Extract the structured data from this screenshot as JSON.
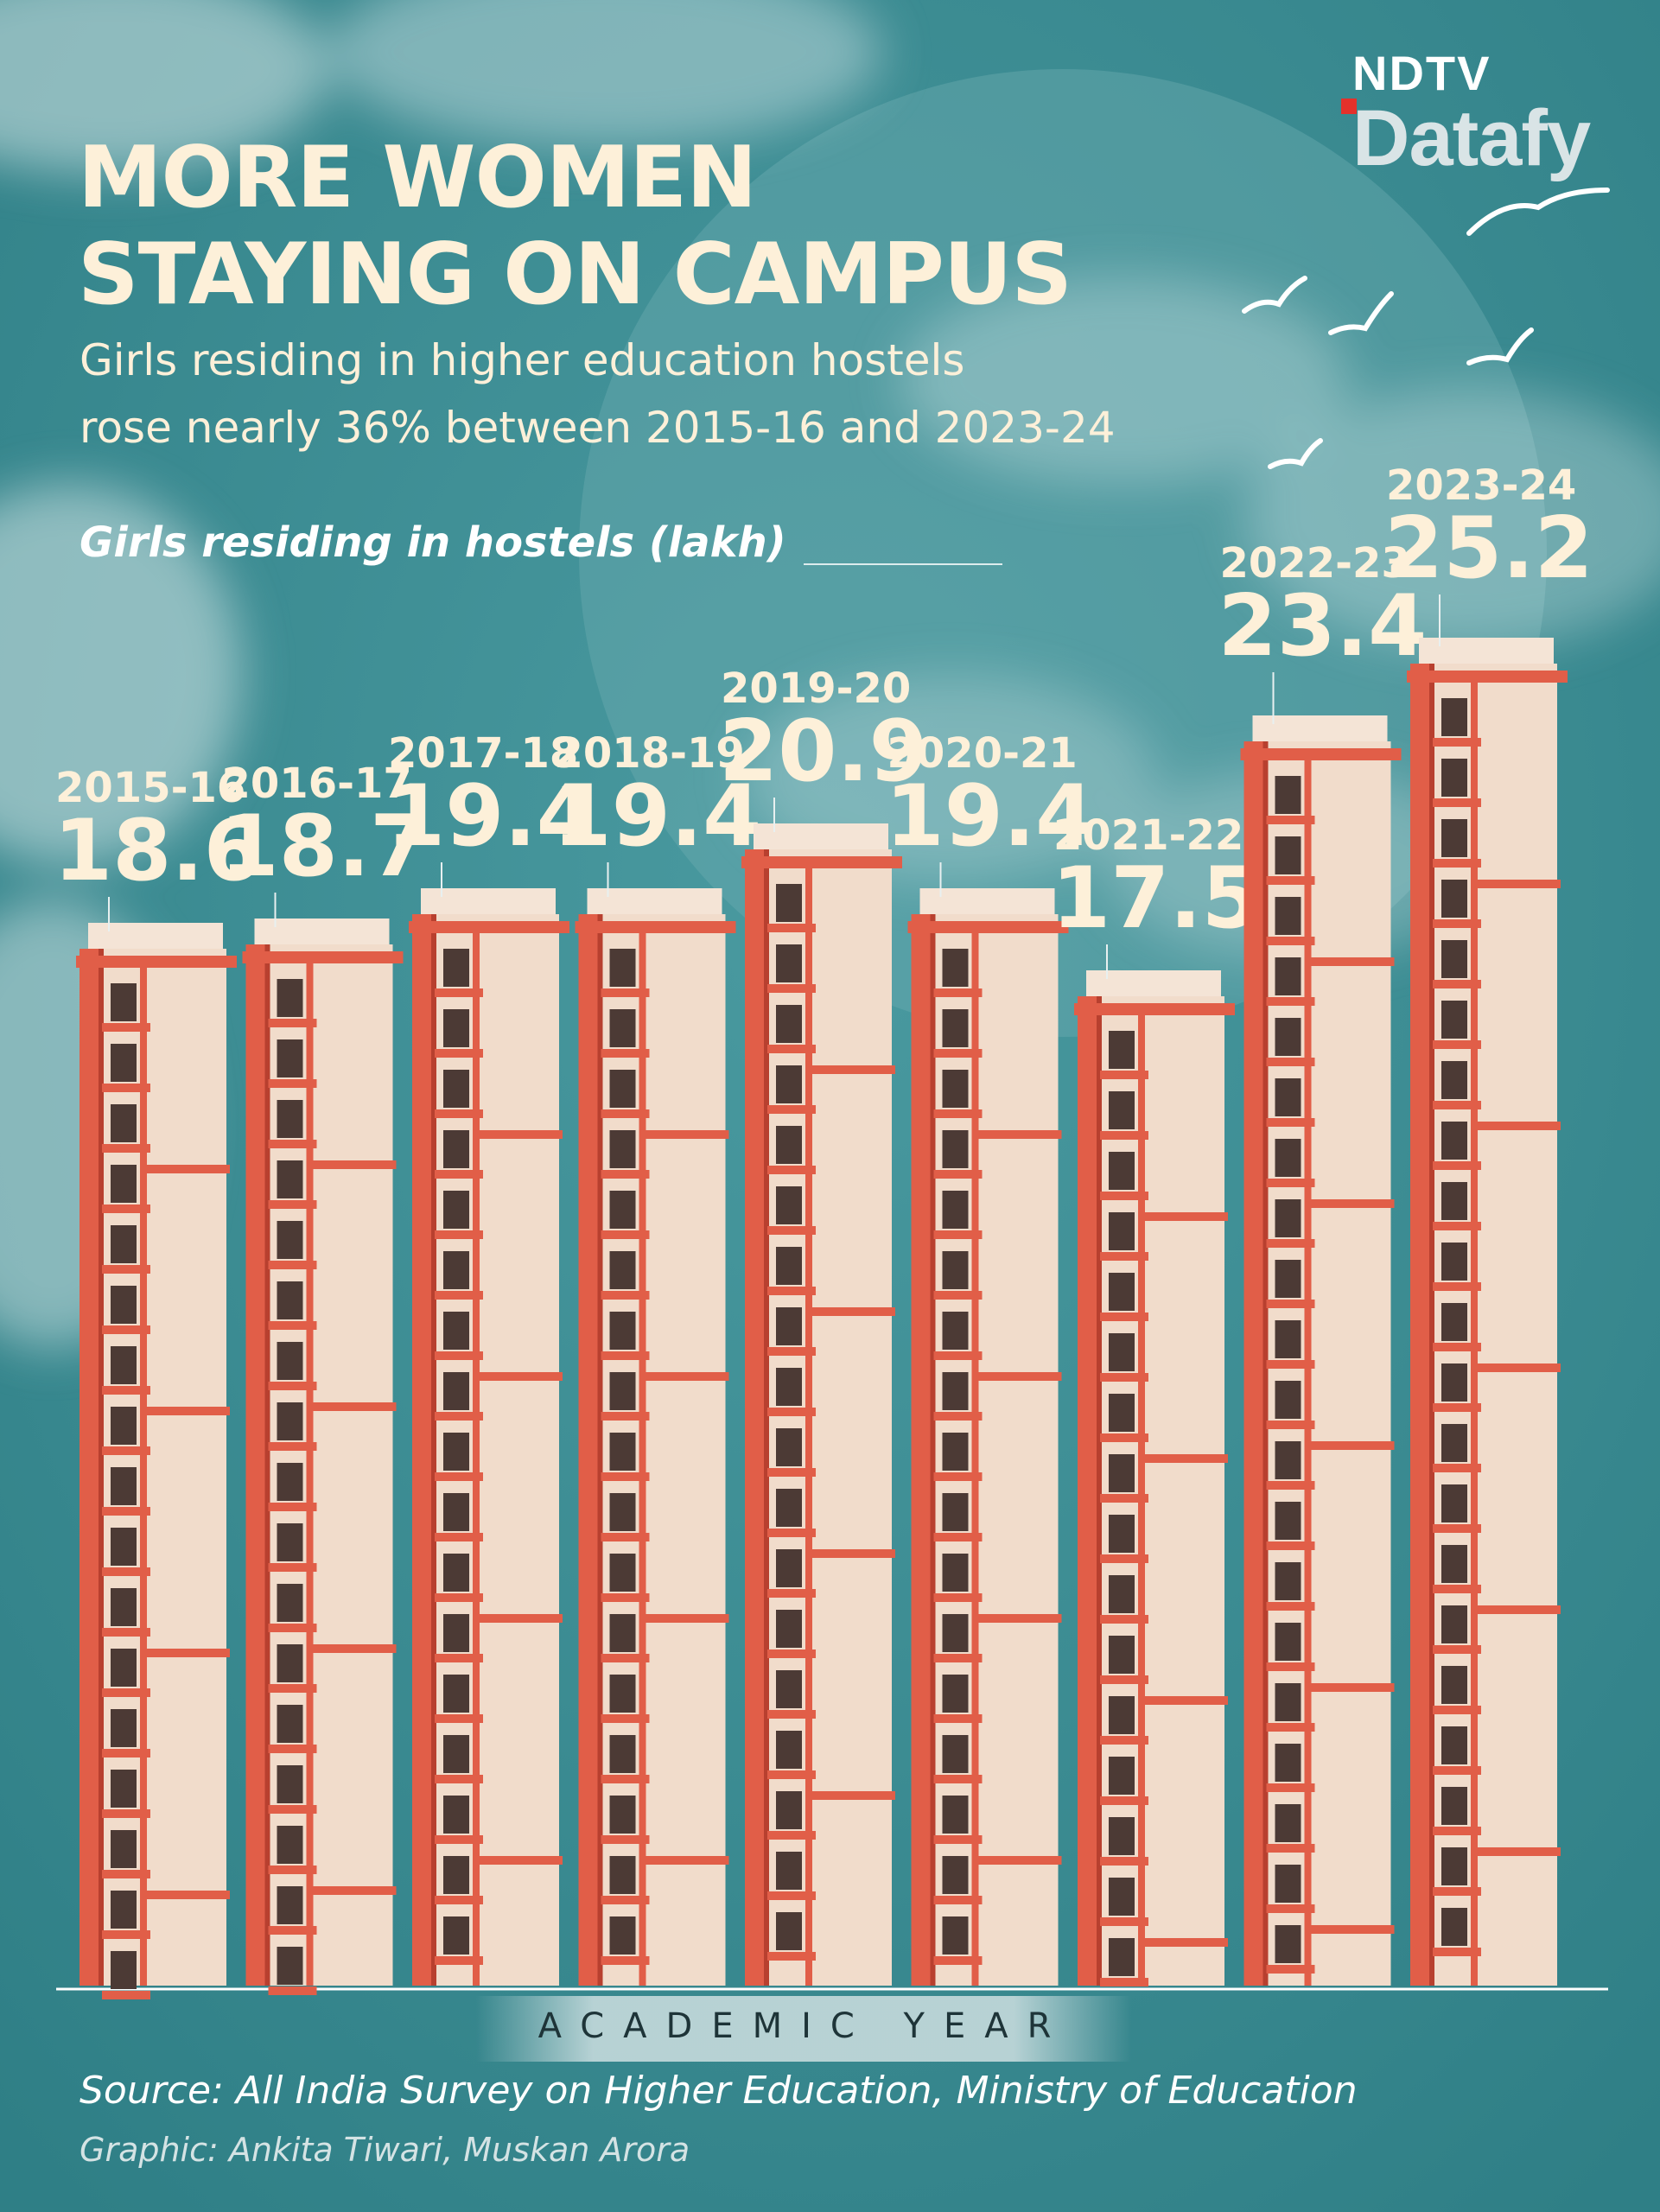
{
  "brand": {
    "logo_top": "NDTV",
    "logo_main": "Datafy",
    "accent_color": "#e4312b"
  },
  "header": {
    "title_line1": "MORE WOMEN",
    "title_line2": "STAYING ON CAMPUS",
    "subtitle_line1": "Girls residing in higher education hostels",
    "subtitle_line2": "rose nearly 36% between 2015-16 and 2023-24",
    "unit_label": "Girls residing in hostels (lakh)"
  },
  "footer": {
    "source": "Source: All India Survey on Higher Education, Ministry of Education",
    "credit": "Graphic: Ankita Tiwari, Muskan Arora"
  },
  "chart_data": {
    "type": "bar",
    "title": "MORE WOMEN STAYING ON CAMPUS",
    "xlabel": "ACADEMIC YEAR",
    "ylabel": "Girls residing in hostels (lakh)",
    "categories": [
      "2015-16",
      "2016-17",
      "2017-18",
      "2018-19",
      "2019-20",
      "2020-21",
      "2021-22",
      "2022-23",
      "2023-24"
    ],
    "values": [
      18.6,
      18.7,
      19.4,
      19.4,
      20.9,
      19.4,
      17.5,
      23.4,
      25.2
    ],
    "data_labels": [
      "18.6",
      "18.7",
      "19.4",
      "19.4",
      "20.9",
      "19.4",
      "17.5",
      "23.4",
      "25.2"
    ],
    "bar_style": "building",
    "grid": false,
    "legend": "none",
    "colors": {
      "background": "#3f8f95",
      "building_face": "#f1dccb",
      "building_frame": "#e15e48",
      "window": "#4c3a35",
      "label": "#fdf0d9"
    }
  }
}
